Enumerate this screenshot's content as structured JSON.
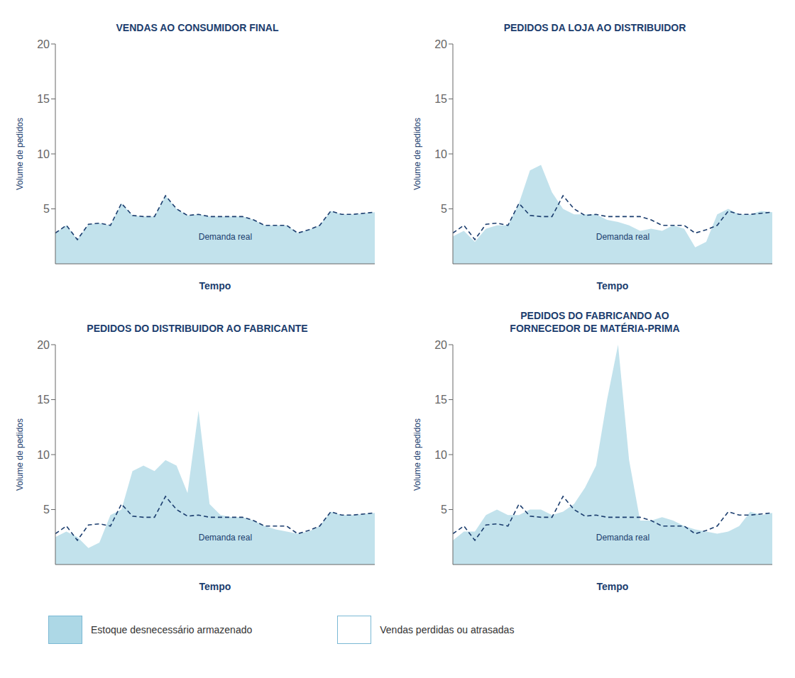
{
  "chart_data": [
    {
      "type": "area",
      "title": "VENDAS AO CONSUMIDOR FINAL",
      "xlabel": "Tempo",
      "ylabel": "Volume de pedidos",
      "x": [
        0,
        1,
        2,
        3,
        4,
        5,
        6,
        7,
        8,
        9,
        10,
        11,
        12,
        13,
        14,
        15,
        16,
        17,
        18,
        19,
        20,
        21,
        22,
        23,
        24,
        25,
        26,
        27,
        28,
        29
      ],
      "series": [
        {
          "type": "area",
          "color": "#add8e6",
          "values": [
            2.8,
            3.5,
            2.2,
            3.6,
            3.7,
            3.5,
            5.5,
            4.4,
            4.3,
            4.3,
            6.2,
            5.0,
            4.4,
            4.5,
            4.3,
            4.3,
            4.3,
            4.3,
            4.0,
            3.5,
            3.5,
            3.5,
            2.8,
            3.1,
            3.5,
            4.8,
            4.5,
            4.5,
            4.6,
            4.7
          ]
        },
        {
          "type": "line",
          "line_style": "dashed",
          "color": "#1b3d6e",
          "values": [
            2.8,
            3.5,
            2.2,
            3.6,
            3.7,
            3.5,
            5.5,
            4.4,
            4.3,
            4.3,
            6.2,
            5.0,
            4.4,
            4.5,
            4.3,
            4.3,
            4.3,
            4.3,
            4.0,
            3.5,
            3.5,
            3.5,
            2.8,
            3.1,
            3.5,
            4.8,
            4.5,
            4.5,
            4.6,
            4.7
          ]
        }
      ],
      "annotations": [
        {
          "text": "Demanda real",
          "x": 13,
          "y": 3.0,
          "color": "#1b3d6e"
        }
      ],
      "xlim": [
        0,
        29
      ],
      "xticks": [
        0,
        3,
        6,
        9,
        12,
        15,
        18,
        21,
        24,
        27
      ],
      "ylim": [
        0,
        20
      ],
      "yticks": [
        5,
        10,
        15,
        20
      ],
      "tick_labels": "y",
      "grid": false
    },
    {
      "type": "area",
      "title": "PEDIDOS DA LOJA AO DISTRIBUIDOR",
      "xlabel": "Tempo",
      "ylabel": "Volume de pedidos",
      "x": [
        0,
        1,
        2,
        3,
        4,
        5,
        6,
        7,
        8,
        9,
        10,
        11,
        12,
        13,
        14,
        15,
        16,
        17,
        18,
        19,
        20,
        21,
        22,
        23,
        24,
        25,
        26,
        27,
        28,
        29
      ],
      "series": [
        {
          "type": "area",
          "color": "#add8e6",
          "values": [
            2.5,
            3.0,
            2.0,
            3.2,
            3.5,
            3.5,
            5.5,
            8.5,
            9.0,
            6.5,
            5.0,
            4.5,
            4.5,
            4.5,
            4.0,
            3.8,
            3.5,
            3.0,
            3.2,
            3.0,
            3.5,
            3.2,
            1.5,
            2.0,
            4.5,
            5.0,
            4.5,
            4.5,
            4.8,
            4.7
          ]
        },
        {
          "type": "line",
          "line_style": "dashed",
          "color": "#1b3d6e",
          "values": [
            2.8,
            3.5,
            2.2,
            3.6,
            3.7,
            3.5,
            5.5,
            4.4,
            4.3,
            4.3,
            6.2,
            5.0,
            4.4,
            4.5,
            4.3,
            4.3,
            4.3,
            4.3,
            4.0,
            3.5,
            3.5,
            3.5,
            2.8,
            3.1,
            3.5,
            4.8,
            4.5,
            4.5,
            4.6,
            4.7
          ]
        }
      ],
      "annotations": [
        {
          "text": "Demanda real",
          "x": 13,
          "y": 3.0,
          "color": "#1b3d6e"
        }
      ],
      "xlim": [
        0,
        29
      ],
      "xticks": [
        0,
        3,
        6,
        9,
        12,
        15,
        18,
        21,
        24,
        27
      ],
      "ylim": [
        0,
        20
      ],
      "yticks": [
        5,
        10,
        15,
        20
      ],
      "tick_labels": "y",
      "grid": false
    },
    {
      "type": "area",
      "title": "PEDIDOS DO DISTRIBUIDOR AO FABRICANTE",
      "xlabel": "Tempo",
      "ylabel": "Volume de pedidos",
      "x": [
        0,
        1,
        2,
        3,
        4,
        5,
        6,
        7,
        8,
        9,
        10,
        11,
        12,
        13,
        14,
        15,
        16,
        17,
        18,
        19,
        20,
        21,
        22,
        23,
        24,
        25,
        26,
        27,
        28,
        29
      ],
      "series": [
        {
          "type": "area",
          "color": "#add8e6",
          "values": [
            2.5,
            3.0,
            2.5,
            1.5,
            2.0,
            4.5,
            5.0,
            8.5,
            9.0,
            8.5,
            9.5,
            9.0,
            6.5,
            14.0,
            5.5,
            4.5,
            4.3,
            4.3,
            4.0,
            3.5,
            3.2,
            3.0,
            2.8,
            3.0,
            3.5,
            4.8,
            4.5,
            4.5,
            4.6,
            4.7
          ]
        },
        {
          "type": "line",
          "line_style": "dashed",
          "color": "#1b3d6e",
          "values": [
            2.8,
            3.5,
            2.2,
            3.6,
            3.7,
            3.5,
            5.5,
            4.4,
            4.3,
            4.3,
            6.2,
            5.0,
            4.4,
            4.5,
            4.3,
            4.3,
            4.3,
            4.3,
            4.0,
            3.5,
            3.5,
            3.5,
            2.8,
            3.1,
            3.5,
            4.8,
            4.5,
            4.5,
            4.6,
            4.7
          ]
        }
      ],
      "annotations": [
        {
          "text": "Demanda real",
          "x": 13,
          "y": 3.0,
          "color": "#1b3d6e"
        }
      ],
      "xlim": [
        0,
        29
      ],
      "xticks": [
        0,
        3,
        6,
        9,
        12,
        15,
        18,
        21,
        24,
        27
      ],
      "ylim": [
        0,
        20
      ],
      "yticks": [
        5,
        10,
        15,
        20
      ],
      "tick_labels": "y",
      "grid": false
    },
    {
      "type": "area",
      "title": "PEDIDOS DO FABRICANDO AO\nFORNECEDOR DE MATÉRIA-PRIMA",
      "xlabel": "Tempo",
      "ylabel": "Volume de pedidos",
      "x": [
        0,
        1,
        2,
        3,
        4,
        5,
        6,
        7,
        8,
        9,
        10,
        11,
        12,
        13,
        14,
        15,
        16,
        17,
        18,
        19,
        20,
        21,
        22,
        23,
        24,
        25,
        26,
        27,
        28,
        29
      ],
      "series": [
        {
          "type": "area",
          "color": "#add8e6",
          "values": [
            2.2,
            3.0,
            3.0,
            4.5,
            5.0,
            4.5,
            4.5,
            5.0,
            5.0,
            4.5,
            4.8,
            5.5,
            7.0,
            9.0,
            15.0,
            20.0,
            9.5,
            4.0,
            4.0,
            4.3,
            4.0,
            3.5,
            3.2,
            3.0,
            2.8,
            3.0,
            3.5,
            4.8,
            4.5,
            4.7
          ]
        },
        {
          "type": "line",
          "line_style": "dashed",
          "color": "#1b3d6e",
          "values": [
            2.8,
            3.5,
            2.2,
            3.6,
            3.7,
            3.5,
            5.5,
            4.4,
            4.3,
            4.3,
            6.2,
            5.0,
            4.4,
            4.5,
            4.3,
            4.3,
            4.3,
            4.3,
            4.0,
            3.5,
            3.5,
            3.5,
            2.8,
            3.1,
            3.5,
            4.8,
            4.5,
            4.5,
            4.6,
            4.7
          ]
        }
      ],
      "annotations": [
        {
          "text": "Demanda real",
          "x": 13,
          "y": 3.0,
          "color": "#1b3d6e"
        }
      ],
      "xlim": [
        0,
        29
      ],
      "xticks": [
        0,
        3,
        6,
        9,
        12,
        15,
        18,
        21,
        24,
        27
      ],
      "ylim": [
        0,
        20
      ],
      "yticks": [
        5,
        10,
        15,
        20
      ],
      "tick_labels": "y",
      "grid": false
    }
  ],
  "legend_items": [
    {
      "name": "Estoque desnecessário armazenado",
      "color": "#add8e6"
    },
    {
      "name": "Vendas perdidas ou atrasadas",
      "color": "#ffffff"
    }
  ]
}
